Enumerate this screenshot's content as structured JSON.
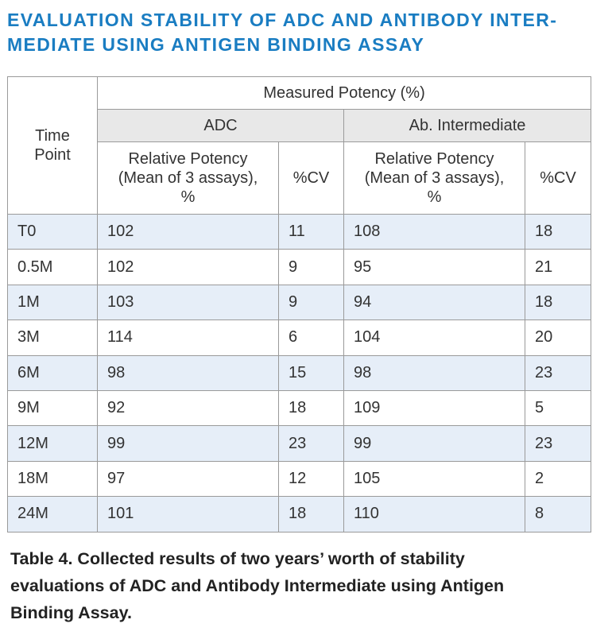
{
  "title": "EVALUATION STABILITY OF ADC AND ANTIBODY INTER-MEDIATE USING ANTIGEN BINDING ASSAY",
  "title_lines": [
    "EVALUATION STABILITY OF ADC AND ANTIBODY INTER-",
    "MEDIATE USING ANTIGEN BINDING ASSAY"
  ],
  "colors": {
    "title": "#1a7dc2",
    "header_shade": "#e8e8e8",
    "row_stripe": "#e6eef8",
    "border": "#9a9a9a"
  },
  "table": {
    "header": {
      "time_point_line1": "Time",
      "time_point_line2": "Point",
      "measured": "Measured Potency (%)",
      "group_adc": "ADC",
      "group_ab": "Ab. Intermediate",
      "rel_potency_line1": "Relative Potency",
      "rel_potency_line2": "(Mean of 3 assays),",
      "rel_potency_line3": "%",
      "cv": "%CV"
    },
    "rows": [
      {
        "time": "T0",
        "adc_potency": "102",
        "adc_cv": "11",
        "ab_potency": "108",
        "ab_cv": "18"
      },
      {
        "time": "0.5M",
        "adc_potency": "102",
        "adc_cv": "9",
        "ab_potency": "95",
        "ab_cv": "21"
      },
      {
        "time": "1M",
        "adc_potency": "103",
        "adc_cv": "9",
        "ab_potency": "94",
        "ab_cv": "18"
      },
      {
        "time": "3M",
        "adc_potency": "114",
        "adc_cv": "6",
        "ab_potency": "104",
        "ab_cv": "20"
      },
      {
        "time": "6M",
        "adc_potency": "98",
        "adc_cv": "15",
        "ab_potency": "98",
        "ab_cv": "23"
      },
      {
        "time": "9M",
        "adc_potency": "92",
        "adc_cv": "18",
        "ab_potency": "109",
        "ab_cv": "5"
      },
      {
        "time": "12M",
        "adc_potency": "99",
        "adc_cv": "23",
        "ab_potency": "99",
        "ab_cv": "23"
      },
      {
        "time": "18M",
        "adc_potency": "97",
        "adc_cv": "12",
        "ab_potency": "105",
        "ab_cv": "2"
      },
      {
        "time": "24M",
        "adc_potency": "101",
        "adc_cv": "18",
        "ab_potency": "110",
        "ab_cv": "8"
      }
    ]
  },
  "caption_lines": [
    "Table 4. Collected results of two years’ worth of stability",
    "evaluations of ADC and Antibody Intermediate using Antigen",
    "Binding Assay."
  ]
}
